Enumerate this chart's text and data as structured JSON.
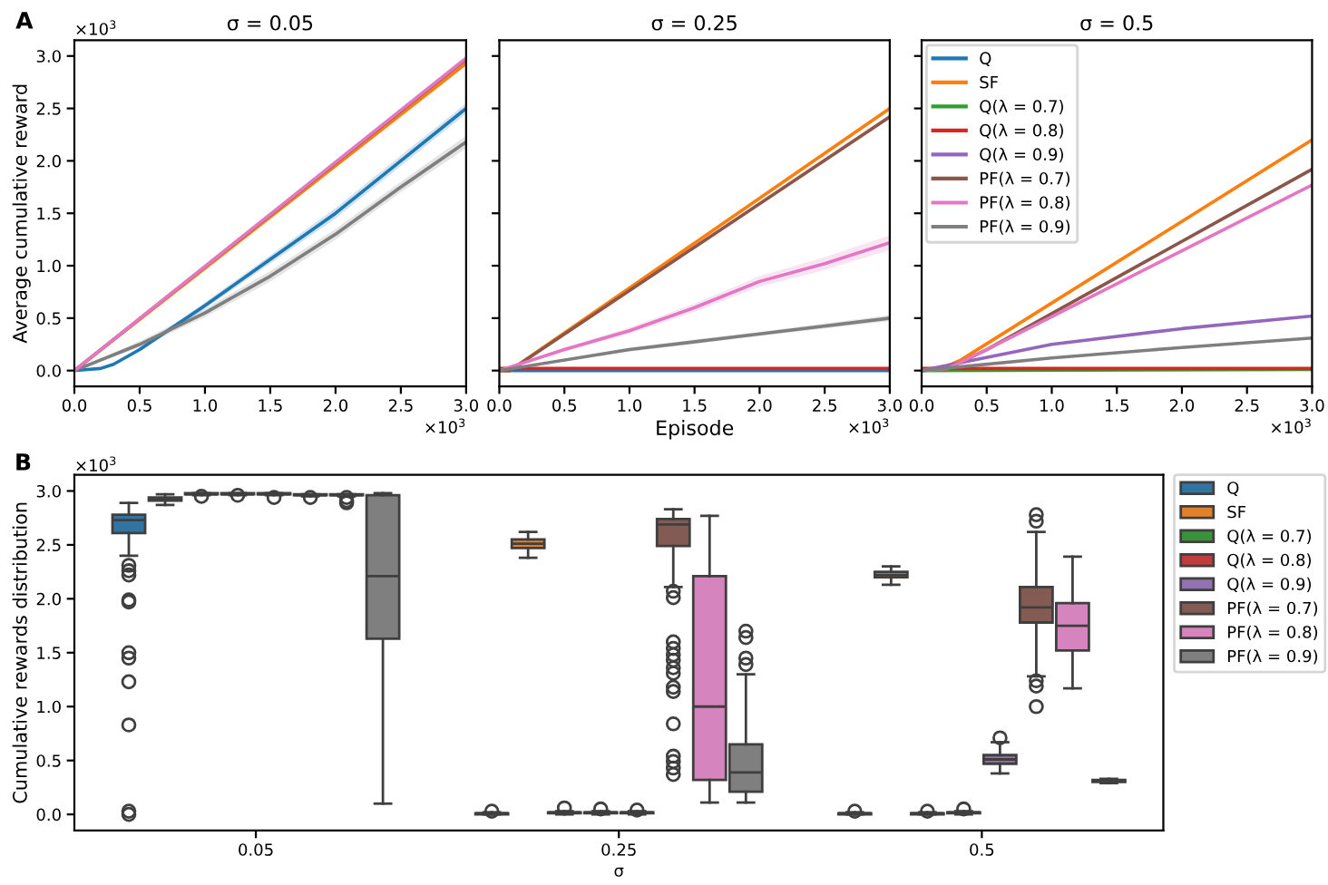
{
  "chart_data": [
    {
      "type": "line",
      "title": "σ = 0.05",
      "ylabel": "Average cumulative reward",
      "annotations": [
        "A",
        "×10$^{3}$",
        "×10$^{3}$"
      ],
      "xlim": [
        0,
        3
      ],
      "ylim": [
        -0.15,
        3.15
      ],
      "xticks": [
        {
          "value": 0,
          "label": "0.0"
        },
        {
          "value": 0.5,
          "label": "0.5"
        },
        {
          "value": 1,
          "label": "1.0"
        },
        {
          "value": 1.5,
          "label": "1.5"
        },
        {
          "value": 2,
          "label": "2.0"
        },
        {
          "value": 2.5,
          "label": "2.5"
        },
        {
          "value": 3,
          "label": "3.0"
        }
      ],
      "yticks": [
        {
          "value": 0,
          "label": "0.0"
        },
        {
          "value": 0.5,
          "label": "0.5"
        },
        {
          "value": 1,
          "label": "1.0"
        },
        {
          "value": 1.5,
          "label": "1.5"
        },
        {
          "value": 2,
          "label": "2.0"
        },
        {
          "value": 2.5,
          "label": "2.5"
        },
        {
          "value": 3,
          "label": "3.0"
        }
      ],
      "grid": false,
      "legend": false,
      "series": [
        {
          "color": "#1f77b4",
          "x": [
            0,
            0.1,
            0.2,
            0.3,
            0.5,
            1,
            1.5,
            2,
            2.5,
            3
          ],
          "values": [
            0,
            0.01,
            0.02,
            0.06,
            0.2,
            0.62,
            1.06,
            1.5,
            2.0,
            2.5
          ],
          "lower": [
            0,
            0.01,
            0.02,
            0.05,
            0.18,
            0.59,
            1.02,
            1.45,
            1.95,
            2.45
          ],
          "upper": [
            0,
            0.01,
            0.02,
            0.07,
            0.22,
            0.65,
            1.1,
            1.55,
            2.05,
            2.55
          ]
        },
        {
          "color": "#ff7f0e",
          "x": [
            0,
            3
          ],
          "values": [
            0,
            2.93
          ]
        },
        {
          "color": "#2ca02c"
        },
        {
          "color": "#d62728"
        },
        {
          "color": "#9467bd"
        },
        {
          "color": "#8c564b",
          "x": [
            0,
            3
          ],
          "values": [
            0,
            2.97
          ]
        },
        {
          "color": "#7f7f7f",
          "x": [
            0,
            0.5,
            1,
            1.5,
            2,
            2.5,
            3
          ],
          "values": [
            0,
            0.25,
            0.55,
            0.9,
            1.3,
            1.75,
            2.18
          ],
          "lower": [
            0,
            0.22,
            0.51,
            0.85,
            1.25,
            1.7,
            2.12
          ],
          "upper": [
            0,
            0.28,
            0.59,
            0.95,
            1.35,
            1.8,
            2.24
          ]
        },
        {
          "color": "#e377c2",
          "x": [
            0,
            3
          ],
          "values": [
            0,
            2.98
          ]
        }
      ]
    },
    {
      "type": "line",
      "title": "σ = 0.25",
      "xlabel": "Episode",
      "annotations": [
        "×10$^{3}$"
      ],
      "xlim": [
        0,
        3
      ],
      "ylim": [
        -0.15,
        3.15
      ],
      "tick_labels": "x",
      "xticks": [
        {
          "value": 0,
          "label": "0.0"
        },
        {
          "value": 0.5,
          "label": "0.5"
        },
        {
          "value": 1,
          "label": "1.0"
        },
        {
          "value": 1.5,
          "label": "1.5"
        },
        {
          "value": 2,
          "label": "2.0"
        },
        {
          "value": 2.5,
          "label": "2.5"
        },
        {
          "value": 3,
          "label": "3.0"
        }
      ],
      "yticks": [
        {
          "value": 0,
          "label": null
        },
        {
          "value": 0.5,
          "label": null
        },
        {
          "value": 1,
          "label": null
        },
        {
          "value": 1.5,
          "label": null
        },
        {
          "value": 2,
          "label": null
        },
        {
          "value": 2.5,
          "label": null
        },
        {
          "value": 3,
          "label": null
        }
      ],
      "grid": false,
      "legend": false,
      "series": [
        {
          "color": "#1f77b4",
          "x": [
            0,
            3
          ],
          "values": [
            0,
            0.0
          ]
        },
        {
          "color": "#ff7f0e",
          "x": [
            0,
            0.08,
            3
          ],
          "values": [
            0,
            0,
            2.5
          ]
        },
        {
          "color": "#2ca02c"
        },
        {
          "color": "#9467bd"
        },
        {
          "color": "#d62728",
          "x": [
            0,
            3
          ],
          "values": [
            0.02,
            0.02
          ]
        },
        {
          "color": "#8c564b",
          "x": [
            0,
            0.08,
            3
          ],
          "values": [
            0,
            0,
            2.42
          ]
        },
        {
          "color": "#e377c2",
          "x": [
            0,
            0.5,
            1,
            1.5,
            2,
            2.5,
            3
          ],
          "values": [
            0,
            0.2,
            0.38,
            0.6,
            0.85,
            1.02,
            1.22
          ],
          "lower": [
            0,
            0.18,
            0.35,
            0.56,
            0.8,
            0.96,
            1.15
          ],
          "upper": [
            0,
            0.22,
            0.41,
            0.64,
            0.9,
            1.08,
            1.29
          ]
        },
        {
          "color": "#7f7f7f",
          "x": [
            0,
            1,
            2,
            3
          ],
          "values": [
            0,
            0.2,
            0.35,
            0.5
          ],
          "lower": [
            0,
            0.18,
            0.33,
            0.47
          ],
          "upper": [
            0,
            0.22,
            0.37,
            0.53
          ]
        }
      ]
    },
    {
      "type": "line",
      "title": "σ = 0.5",
      "annotations": [
        "×10$^{3}$"
      ],
      "xlim": [
        0,
        3
      ],
      "ylim": [
        -0.15,
        3.15
      ],
      "tick_labels": "x",
      "xticks": [
        {
          "value": 0,
          "label": "0.0"
        },
        {
          "value": 0.5,
          "label": "0.5"
        },
        {
          "value": 1,
          "label": "1.0"
        },
        {
          "value": 1.5,
          "label": "1.5"
        },
        {
          "value": 2,
          "label": "2.0"
        },
        {
          "value": 2.5,
          "label": "2.5"
        },
        {
          "value": 3,
          "label": "3.0"
        }
      ],
      "yticks": [
        {
          "value": 0,
          "label": null
        },
        {
          "value": 0.5,
          "label": null
        },
        {
          "value": 1,
          "label": null
        },
        {
          "value": 1.5,
          "label": null
        },
        {
          "value": 2,
          "label": null
        },
        {
          "value": 2.5,
          "label": null
        },
        {
          "value": 3,
          "label": null
        }
      ],
      "grid": false,
      "legend": "top left",
      "series": [
        {
          "name": "Q",
          "color": "#1f77b4"
        },
        {
          "name": "SF",
          "color": "#ff7f0e",
          "x": [
            0,
            0.15,
            0.3,
            3
          ],
          "values": [
            0,
            0.02,
            0.1,
            2.2
          ]
        },
        {
          "name": "Q(λ = 0.7)",
          "color": "#2ca02c",
          "x": [
            0,
            3
          ],
          "values": [
            0,
            0.01
          ]
        },
        {
          "name": "Q(λ = 0.8)",
          "color": "#d62728",
          "x": [
            0,
            3
          ],
          "values": [
            0.02,
            0.02
          ]
        },
        {
          "name": "Q(λ = 0.9)",
          "color": "#9467bd",
          "x": [
            0,
            1,
            2,
            3
          ],
          "values": [
            0,
            0.25,
            0.4,
            0.52
          ]
        },
        {
          "name": "PF(λ = 0.7)",
          "color": "#8c564b",
          "x": [
            0,
            0.2,
            0.5,
            3
          ],
          "values": [
            0,
            0.02,
            0.2,
            1.92
          ]
        },
        {
          "name": "PF(λ = 0.8)",
          "color": "#e377c2",
          "x": [
            0,
            0.2,
            0.5,
            3
          ],
          "values": [
            0,
            0.02,
            0.2,
            1.77
          ]
        },
        {
          "name": "PF(λ = 0.9)",
          "color": "#7f7f7f",
          "x": [
            0,
            1,
            2,
            3
          ],
          "values": [
            0,
            0.12,
            0.22,
            0.31
          ]
        }
      ]
    },
    {
      "type": "box",
      "xlabel": "σ",
      "ylabel": "Cumulative rewards distribution",
      "annotations": [
        "B",
        "×10$^{3}$"
      ],
      "categories": [
        "0.05",
        "0.25",
        "0.5"
      ],
      "ylim": [
        -0.15,
        3.15
      ],
      "yticks": [
        {
          "value": 0,
          "label": "0.0"
        },
        {
          "value": 0.5,
          "label": "0.5"
        },
        {
          "value": 1,
          "label": "1.0"
        },
        {
          "value": 1.5,
          "label": "1.5"
        },
        {
          "value": 2,
          "label": "2.0"
        },
        {
          "value": 2.5,
          "label": "2.5"
        },
        {
          "value": 3,
          "label": "3.0"
        }
      ],
      "grid": false,
      "legend": "right",
      "series": [
        {
          "name": "Q",
          "color": "#3274a1",
          "boxes": [
            {
              "low": 2.4,
              "q1": 2.61,
              "median": 2.73,
              "q3": 2.78,
              "high": 2.89,
              "outliers": [
                2.31,
                2.26,
                2.22,
                1.99,
                1.97,
                1.5,
                1.45,
                1.23,
                0.83,
                0.03,
                0.0
              ]
            },
            {
              "low": 0.0,
              "q1": 0.0,
              "median": 0.01,
              "q3": 0.01,
              "high": 0.02,
              "outliers": [
                0.03
              ]
            },
            {
              "low": 0.0,
              "q1": 0.0,
              "median": 0.01,
              "q3": 0.01,
              "high": 0.02,
              "outliers": [
                0.03
              ]
            }
          ]
        },
        {
          "name": "SF",
          "color": "#e1812c",
          "boxes": [
            {
              "low": 2.87,
              "q1": 2.91,
              "median": 2.93,
              "q3": 2.94,
              "high": 2.97
            },
            {
              "low": 2.38,
              "q1": 2.47,
              "median": 2.51,
              "q3": 2.55,
              "high": 2.62
            },
            {
              "low": 2.13,
              "q1": 2.2,
              "median": 2.22,
              "q3": 2.25,
              "high": 2.3
            }
          ]
        },
        {
          "name": "Q(λ = 0.7)",
          "color": "#3a923a",
          "boxes": [
            {
              "low": 2.96,
              "q1": 2.97,
              "median": 2.97,
              "q3": 2.98,
              "high": 2.98,
              "outliers": [
                2.95
              ]
            },
            {
              "low": 0.0,
              "q1": 0.01,
              "median": 0.02,
              "q3": 0.02,
              "high": 0.03,
              "outliers": [
                0.06
              ]
            },
            {
              "low": 0.0,
              "q1": 0.0,
              "median": 0.01,
              "q3": 0.01,
              "high": 0.02,
              "outliers": [
                0.03
              ]
            }
          ]
        },
        {
          "name": "Q(λ = 0.8)",
          "color": "#c03d3e",
          "boxes": [
            {
              "low": 2.96,
              "q1": 2.97,
              "median": 2.97,
              "q3": 2.98,
              "high": 2.98,
              "outliers": [
                2.96
              ]
            },
            {
              "low": 0.0,
              "q1": 0.01,
              "median": 0.02,
              "q3": 0.02,
              "high": 0.03,
              "outliers": [
                0.05
              ]
            },
            {
              "low": 0.0,
              "q1": 0.01,
              "median": 0.02,
              "q3": 0.02,
              "high": 0.03,
              "outliers": [
                0.05
              ]
            }
          ]
        },
        {
          "name": "Q(λ = 0.9)",
          "color": "#9372b2",
          "boxes": [
            {
              "low": 2.96,
              "q1": 2.97,
              "median": 2.97,
              "q3": 2.98,
              "high": 2.98,
              "outliers": [
                2.94
              ]
            },
            {
              "low": 0.0,
              "q1": 0.01,
              "median": 0.02,
              "q3": 0.02,
              "high": 0.03,
              "outliers": [
                0.04
              ]
            },
            {
              "low": 0.38,
              "q1": 0.47,
              "median": 0.51,
              "q3": 0.55,
              "high": 0.67,
              "outliers": [
                0.71
              ]
            }
          ]
        },
        {
          "name": "PF(λ = 0.7)",
          "color": "#845b53",
          "boxes": [
            {
              "low": 2.95,
              "q1": 2.96,
              "median": 2.96,
              "q3": 2.97,
              "high": 2.97,
              "outliers": [
                2.94
              ]
            },
            {
              "low": 2.11,
              "q1": 2.49,
              "median": 2.69,
              "q3": 2.74,
              "high": 2.83,
              "outliers": [
                2.07,
                2.01,
                1.6,
                1.54,
                1.48,
                1.43,
                1.36,
                1.31,
                1.18,
                1.14,
                0.84,
                0.54,
                0.49,
                0.43,
                0.37
              ]
            },
            {
              "low": 1.28,
              "q1": 1.78,
              "median": 1.92,
              "q3": 2.11,
              "high": 2.62,
              "outliers": [
                2.78,
                2.72,
                1.24,
                1.19,
                1.0
              ]
            }
          ]
        },
        {
          "name": "PF(λ = 0.8)",
          "color": "#d684bd",
          "boxes": [
            {
              "low": 2.95,
              "q1": 2.96,
              "median": 2.96,
              "q3": 2.97,
              "high": 2.97,
              "outliers": [
                2.94,
                2.91,
                2.89
              ]
            },
            {
              "low": 0.11,
              "q1": 0.32,
              "median": 1.0,
              "q3": 2.21,
              "high": 2.77
            },
            {
              "low": 1.17,
              "q1": 1.52,
              "median": 1.75,
              "q3": 1.96,
              "high": 2.39
            }
          ]
        },
        {
          "name": "PF(λ = 0.9)",
          "color": "#7f7f7f",
          "boxes": [
            {
              "low": 0.1,
              "q1": 1.63,
              "median": 2.21,
              "q3": 2.96,
              "high": 2.98
            },
            {
              "low": 0.11,
              "q1": 0.21,
              "median": 0.39,
              "q3": 0.65,
              "high": 1.3,
              "outliers": [
                1.7,
                1.64,
                1.45,
                1.39
              ]
            },
            {
              "low": 0.29,
              "q1": 0.3,
              "median": 0.31,
              "q3": 0.32,
              "high": 0.33
            }
          ]
        }
      ]
    }
  ]
}
